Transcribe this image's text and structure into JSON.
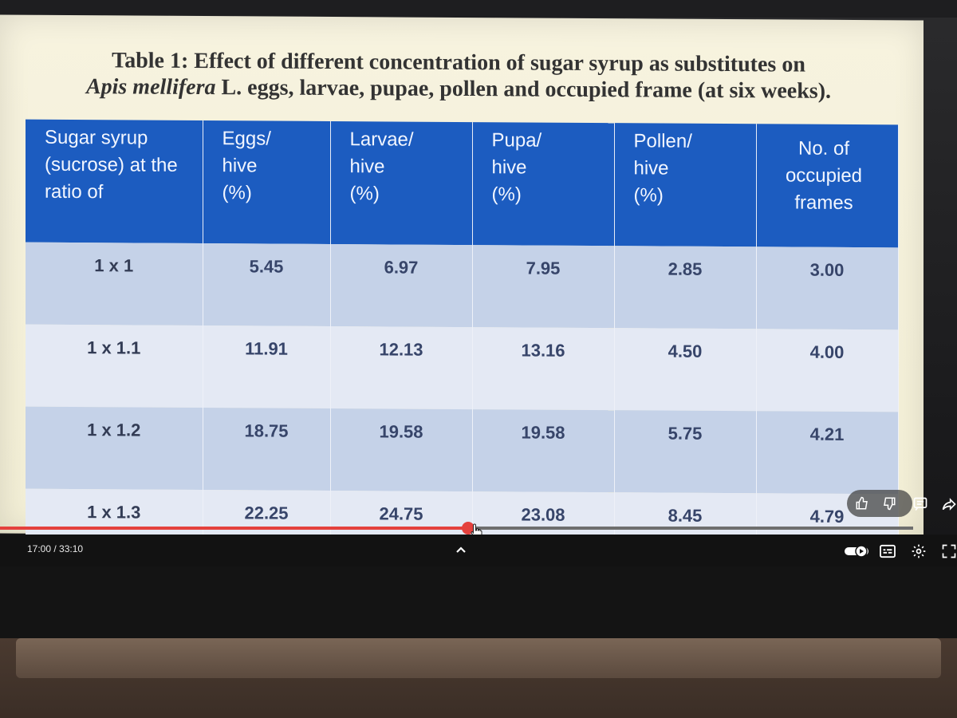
{
  "slide": {
    "title_line1": "Table 1: Effect of different concentration of sugar syrup as substitutes on",
    "title_species": "Apis mellifera",
    "title_line2_rest": " L. eggs, larvae, pupae, pollen and occupied frame (at six weeks)."
  },
  "table": {
    "headers": [
      [
        "Sugar syrup",
        "(sucrose) at the",
        "ratio of"
      ],
      [
        "Eggs/",
        "hive",
        "(%)"
      ],
      [
        "Larvae/",
        "hive",
        "(%)"
      ],
      [
        "Pupa/",
        "hive",
        "(%)"
      ],
      [
        "Pollen/",
        "hive",
        "(%)"
      ],
      [
        "No. of",
        "occupied",
        "frames"
      ]
    ],
    "rows": [
      [
        "1 x 1",
        "5.45",
        "6.97",
        "7.95",
        "2.85",
        "3.00"
      ],
      [
        "1 x 1.1",
        "11.91",
        "12.13",
        "13.16",
        "4.50",
        "4.00"
      ],
      [
        "1 x 1.2",
        "18.75",
        "19.58",
        "19.58",
        "5.75",
        "4.21"
      ],
      [
        "1 x 1.3",
        "22.25",
        "24.75",
        "23.08",
        "8.45",
        "4.79"
      ]
    ]
  },
  "player": {
    "timecode": "17:00 / 33:10",
    "progress_fraction": 0.5126,
    "colors": {
      "played": "#e4413d",
      "track": "#6e6e6e",
      "header_blue": "#1c5cc0"
    },
    "icons": [
      "thumbs-up-icon",
      "thumbs-down-icon",
      "comment-icon",
      "share-icon",
      "chevron-up-icon",
      "autoplay-toggle-icon",
      "captions-icon",
      "settings-gear-icon",
      "fullscreen-icon",
      "cursor-hand-icon"
    ]
  }
}
